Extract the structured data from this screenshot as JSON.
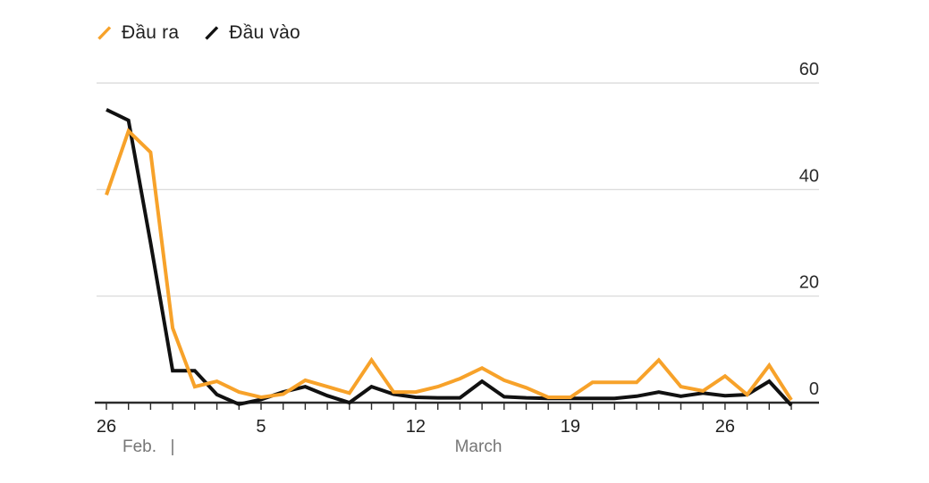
{
  "legend": {
    "items": [
      {
        "label": "Đầu ra",
        "color": "#F7A22A"
      },
      {
        "label": "Đầu vào",
        "color": "#111111"
      }
    ]
  },
  "axis": {
    "ytick_labels": [
      "60",
      "40",
      "20",
      "0"
    ],
    "xtick_labels": [
      {
        "label": "26",
        "day": 0
      },
      {
        "label": "5",
        "day": 7
      },
      {
        "label": "12",
        "day": 14
      },
      {
        "label": "19",
        "day": 21
      },
      {
        "label": "26",
        "day": 28
      }
    ],
    "month_labels": {
      "left": "Feb.",
      "separator": "|",
      "right": "March"
    }
  },
  "chart_data": {
    "type": "line",
    "title": "",
    "xlabel": "",
    "ylabel": "",
    "x": [
      "Feb 26",
      "Feb 27",
      "Feb 28",
      "Mar 1",
      "Mar 2",
      "Mar 3",
      "Mar 4",
      "Mar 5",
      "Mar 6",
      "Mar 7",
      "Mar 8",
      "Mar 9",
      "Mar 10",
      "Mar 11",
      "Mar 12",
      "Mar 13",
      "Mar 14",
      "Mar 15",
      "Mar 16",
      "Mar 17",
      "Mar 18",
      "Mar 19",
      "Mar 20",
      "Mar 21",
      "Mar 22",
      "Mar 23",
      "Mar 24",
      "Mar 25",
      "Mar 26",
      "Mar 27",
      "Mar 28",
      "Mar 29"
    ],
    "series": [
      {
        "name": "Đầu vào",
        "color": "#111111",
        "values": [
          55,
          53,
          30,
          6,
          6,
          1.5,
          -0.3,
          0.6,
          2,
          3,
          1.3,
          0,
          3,
          1.6,
          1,
          0.9,
          0.9,
          4,
          1.1,
          0.9,
          0.8,
          0.8,
          0.8,
          0.8,
          1.2,
          2,
          1.2,
          1.8,
          1.3,
          1.5,
          4,
          -0.5
        ]
      },
      {
        "name": "Đầu ra",
        "color": "#F7A22A",
        "values": [
          39,
          51,
          47,
          14,
          3,
          4,
          2,
          1,
          1.6,
          4.2,
          3,
          1.8,
          8,
          2,
          2,
          3,
          4.5,
          6.5,
          4.2,
          2.8,
          1,
          1,
          3.8,
          3.8,
          3.8,
          8,
          3,
          2.2,
          5,
          1.5,
          7,
          0.5
        ]
      }
    ],
    "ylim": [
      0,
      60
    ],
    "yticks": [
      0,
      20,
      40,
      60
    ],
    "grid": "horizontal-light-gray",
    "legend_position": "top-left",
    "colors": {
      "grid": "#D7D7D7",
      "axis": "#2B2B2B",
      "muted_text": "#767676",
      "text": "#1F1F1F"
    }
  }
}
